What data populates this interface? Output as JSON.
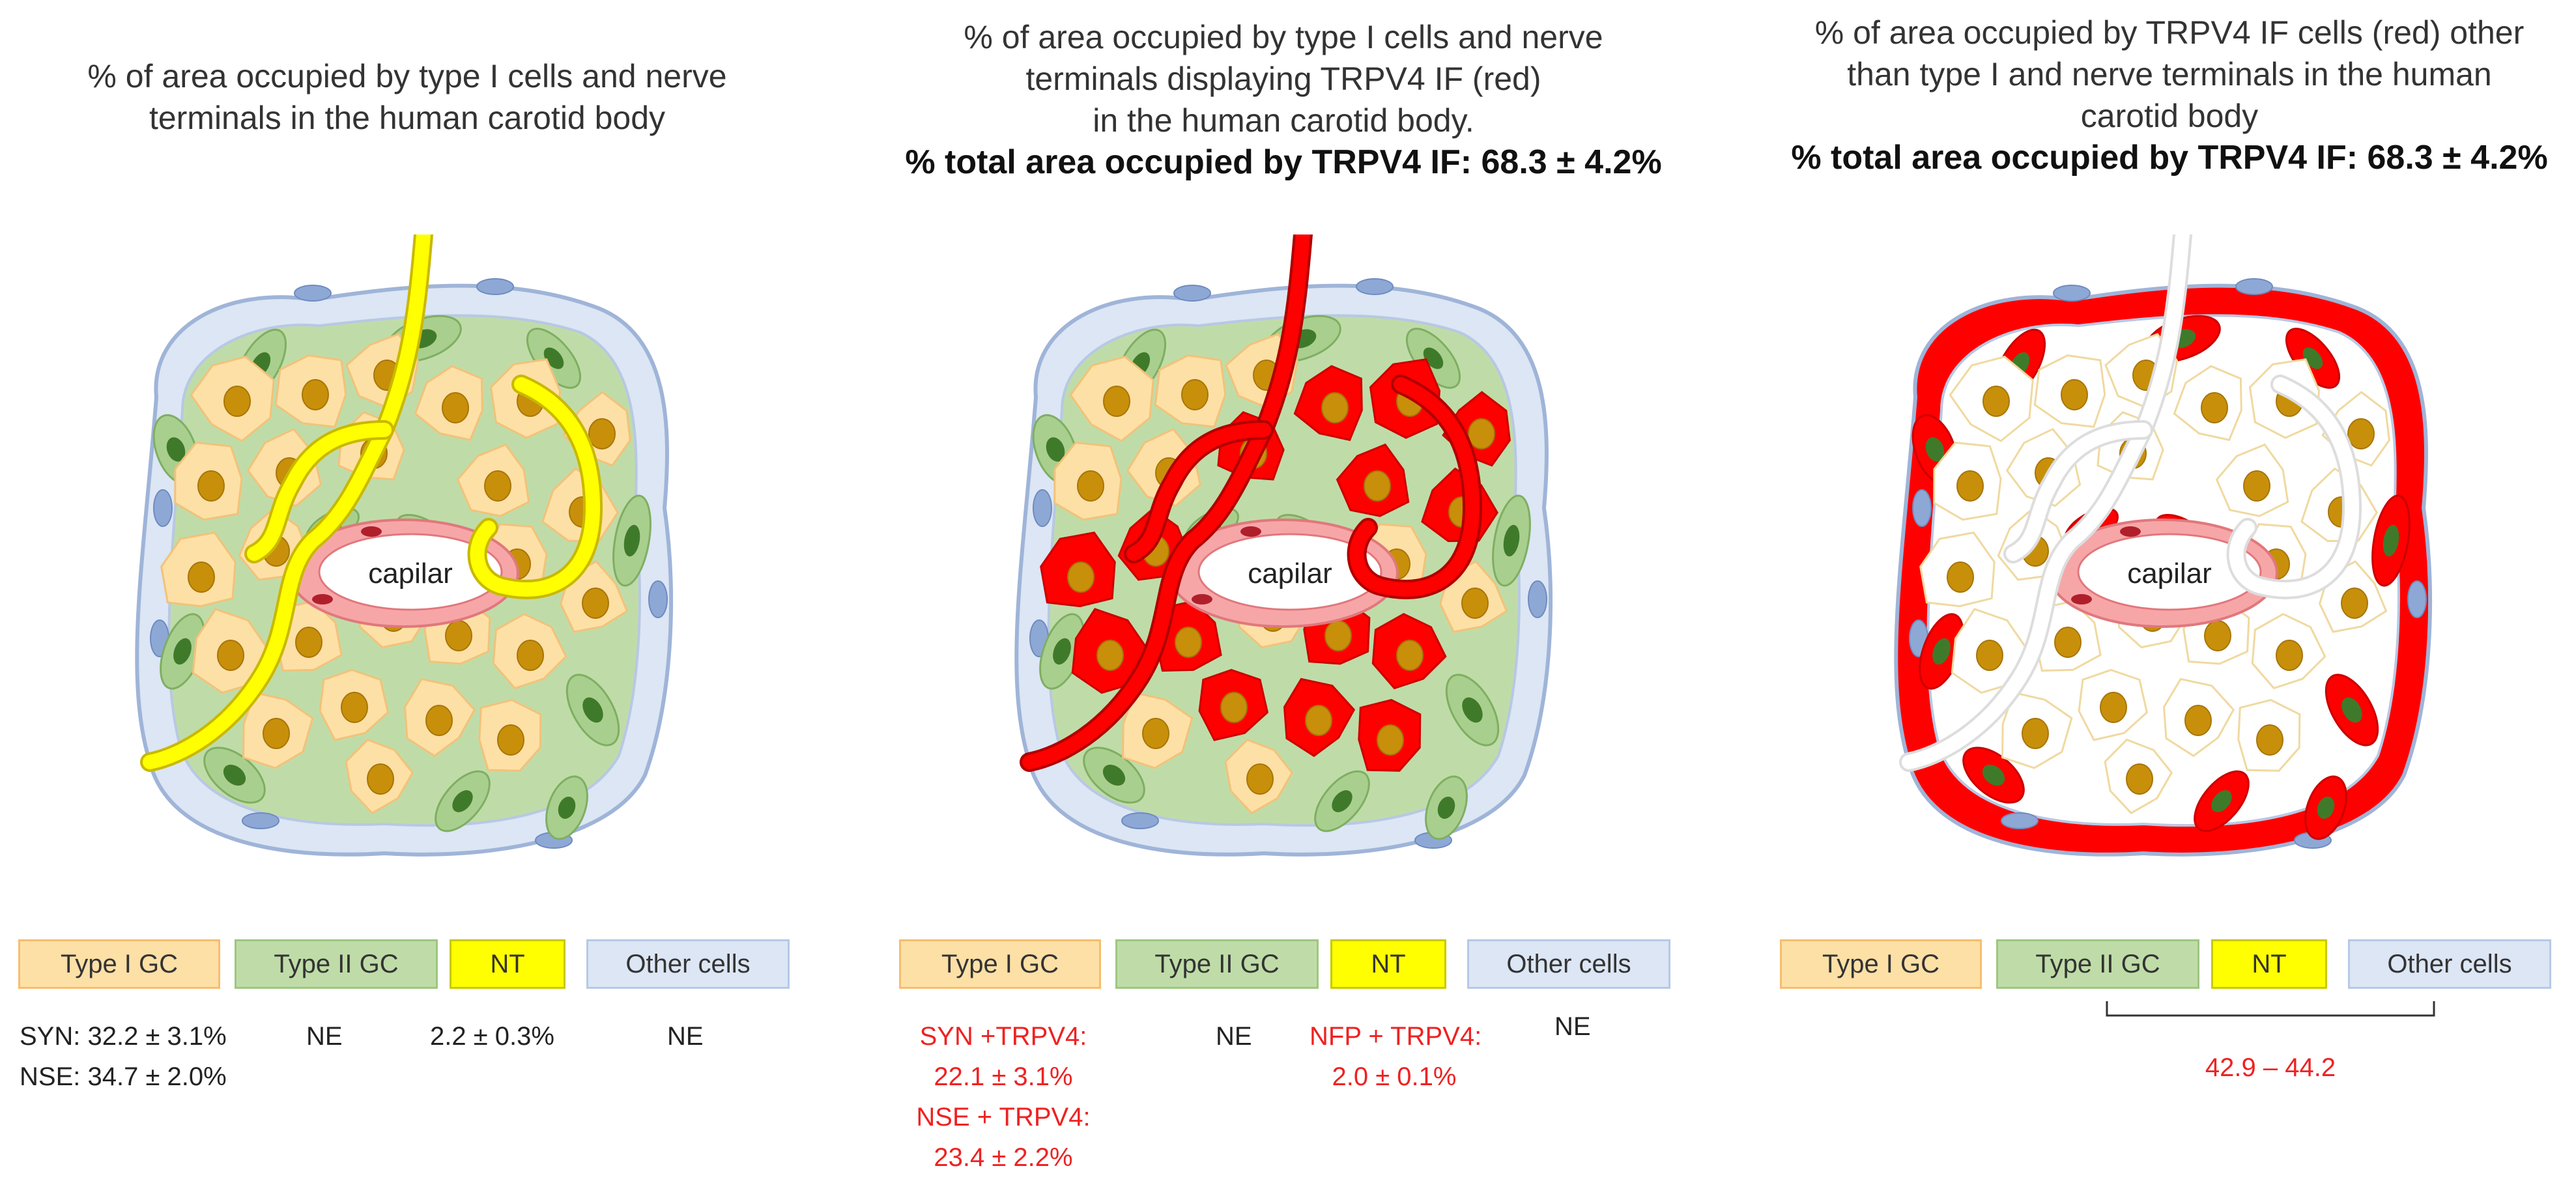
{
  "panels": [
    {
      "title_lines": [
        "% of area occupied by type I cells and nerve",
        "terminals in the human carotid body"
      ],
      "bold_line": ""
    },
    {
      "title_lines": [
        "% of area occupied by type I cells and nerve",
        "terminals displaying TRPV4 IF (red)",
        "in the human carotid body."
      ],
      "bold_line": "% total area  occupied by TRPV4 IF: 68.3 ± 4.2%"
    },
    {
      "title_lines": [
        "% of area occupied by TRPV4 IF cells (red) other",
        "than type I and nerve terminals in the human",
        "carotid body"
      ],
      "bold_line": "% total area  occupied by TRPV4 IF: 68.3 ± 4.2%"
    }
  ],
  "capillary_label": "capilar",
  "legend": {
    "type1": "Type I GC",
    "type2": "Type II GC",
    "nt": "NT",
    "other": "Other cells"
  },
  "colors": {
    "type1_fill": "#fde0a6",
    "type2_fill": "#bfdca8",
    "nt_fill": "#ffff00",
    "other_fill": "#dce6f4",
    "trpv4_red": "#ff0000",
    "nucleus": "#c8900a"
  },
  "values": {
    "panel1": {
      "syn": "SYN: 32.2 ± 3.1%",
      "nse": "NSE: 34.7 ± 2.0%",
      "type2": "NE",
      "nt": "2.2 ± 0.3%",
      "other": "NE"
    },
    "panel2": {
      "syn_label": "SYN +TRPV4:",
      "syn_value": "22.1 ± 3.1%",
      "nse_label": "NSE + TRPV4:",
      "nse_value": "23.4 ± 2.2%",
      "type2": "NE",
      "nfp_label": "NFP + TRPV4:",
      "nfp_value": "2.0 ± 0.1%",
      "other": "NE"
    },
    "panel3": {
      "range": "42.9 – 44.2"
    }
  }
}
